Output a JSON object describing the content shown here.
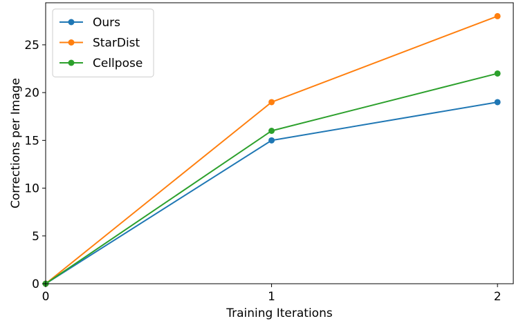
{
  "chart_data": {
    "type": "line",
    "title": "",
    "xlabel": "Training Iterations",
    "ylabel": "Corrections per Image",
    "x": [
      0,
      1,
      2
    ],
    "xlim": [
      0,
      2.07
    ],
    "ylim": [
      0,
      29.4
    ],
    "xticks": [
      0,
      1,
      2
    ],
    "yticks": [
      0,
      5,
      10,
      15,
      20,
      25
    ],
    "grid": false,
    "legend_position": "top-left",
    "series": [
      {
        "name": "Ours",
        "color": "#1f77b4",
        "values": [
          0,
          15,
          19
        ]
      },
      {
        "name": "StarDist",
        "color": "#ff7f0e",
        "values": [
          0,
          19,
          28
        ]
      },
      {
        "name": "Cellpose",
        "color": "#2ca02c",
        "values": [
          0,
          16,
          22
        ]
      }
    ]
  }
}
